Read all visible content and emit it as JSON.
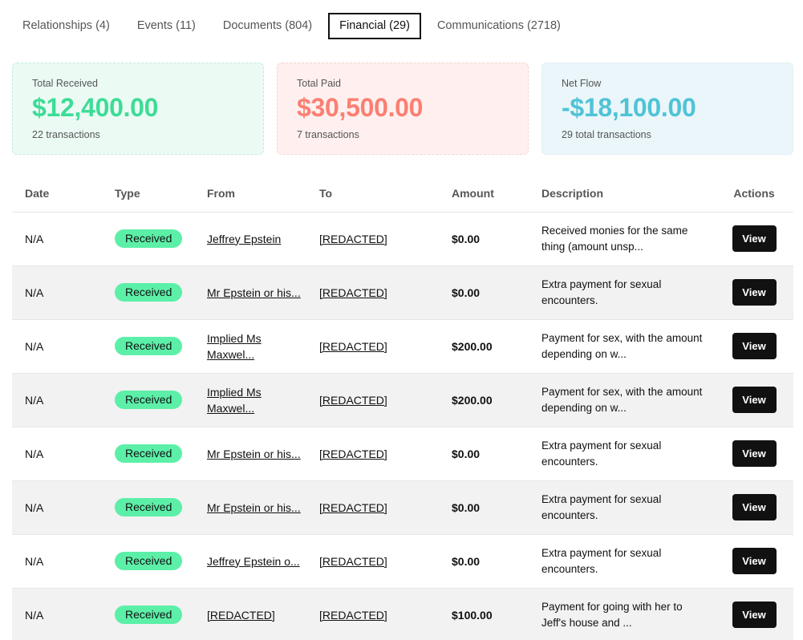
{
  "tabs": [
    {
      "label": "Relationships (4)",
      "active": false
    },
    {
      "label": "Events (11)",
      "active": false
    },
    {
      "label": "Documents (804)",
      "active": false
    },
    {
      "label": "Financial (29)",
      "active": true
    },
    {
      "label": "Communications (2718)",
      "active": false
    }
  ],
  "summary": {
    "received": {
      "label": "Total Received",
      "value": "$12,400.00",
      "sub": "22 transactions"
    },
    "paid": {
      "label": "Total Paid",
      "value": "$30,500.00",
      "sub": "7 transactions"
    },
    "net": {
      "label": "Net Flow",
      "value": "-$18,100.00",
      "sub": "29 total transactions"
    }
  },
  "colors": {
    "received": "#3ddc97",
    "paid": "#fa7f72",
    "net": "#4fc3d6",
    "badge": "#5cefa8"
  },
  "table": {
    "headers": {
      "date": "Date",
      "type": "Type",
      "from": "From",
      "to": "To",
      "amount": "Amount",
      "description": "Description",
      "actions": "Actions"
    },
    "rows": [
      {
        "date": "N/A",
        "type": "Received",
        "from": "Jeffrey Epstein",
        "to": "[REDACTED]",
        "amount": "$0.00",
        "description": "Received monies for the same thing (amount unsp...",
        "action": "View"
      },
      {
        "date": "N/A",
        "type": "Received",
        "from": "Mr Epstein or his...",
        "to": "[REDACTED]",
        "amount": "$0.00",
        "description": "Extra payment for sexual encounters.",
        "action": "View"
      },
      {
        "date": "N/A",
        "type": "Received",
        "from": "Implied Ms Maxwel...",
        "to": "[REDACTED]",
        "amount": "$200.00",
        "description": "Payment for sex, with the amount depending on w...",
        "action": "View"
      },
      {
        "date": "N/A",
        "type": "Received",
        "from": "Implied Ms Maxwel...",
        "to": "[REDACTED]",
        "amount": "$200.00",
        "description": "Payment for sex, with the amount depending on w...",
        "action": "View"
      },
      {
        "date": "N/A",
        "type": "Received",
        "from": "Mr Epstein or his...",
        "to": "[REDACTED]",
        "amount": "$0.00",
        "description": "Extra payment for sexual encounters.",
        "action": "View"
      },
      {
        "date": "N/A",
        "type": "Received",
        "from": "Mr Epstein or his...",
        "to": "[REDACTED]",
        "amount": "$0.00",
        "description": "Extra payment for sexual encounters.",
        "action": "View"
      },
      {
        "date": "N/A",
        "type": "Received",
        "from": "Jeffrey Epstein o...",
        "to": "[REDACTED]",
        "amount": "$0.00",
        "description": "Extra payment for sexual encounters.",
        "action": "View"
      },
      {
        "date": "N/A",
        "type": "Received",
        "from": "[REDACTED]",
        "to": "[REDACTED]",
        "amount": "$100.00",
        "description": "Payment for going with her to Jeff's house and ...",
        "action": "View"
      }
    ]
  }
}
